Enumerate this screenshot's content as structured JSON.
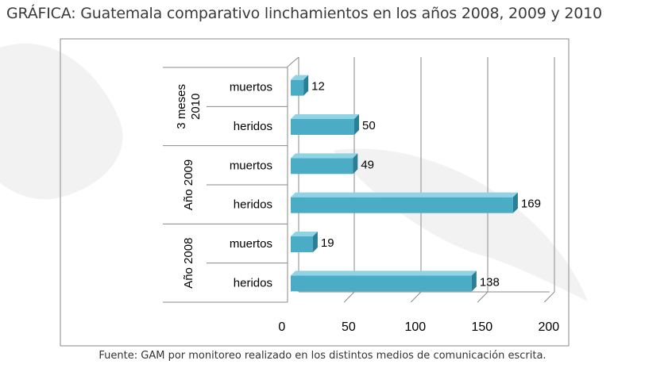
{
  "title": "GRÁFICA: Guatemala comparativo linchamientos en los años 2008, 2009 y 2010",
  "source": "Fuente: GAM por monitoreo realizado en los distintos medios de comunicación escrita.",
  "colors": {
    "bar_front": "#4bacc6",
    "bar_top": "#8fd3e4",
    "bar_side": "#2a7f96",
    "grid": "#8a8a8a",
    "map": "#ececec"
  },
  "chart_data": {
    "type": "bar",
    "orientation": "horizontal",
    "title": "GRÁFICA: Guatemala comparativo linchamientos en los años 2008, 2009 y 2010",
    "xlim": [
      0,
      200
    ],
    "xticks": [
      0,
      50,
      100,
      150,
      200
    ],
    "groups": [
      {
        "name": "3 meses 2010",
        "name_lines": [
          "3 meses",
          "2010"
        ],
        "items": [
          {
            "category": "muertos",
            "value": 12
          },
          {
            "category": "heridos",
            "value": 50
          }
        ]
      },
      {
        "name": "Año 2009",
        "name_lines": [
          "Año 2009"
        ],
        "items": [
          {
            "category": "muertos",
            "value": 49
          },
          {
            "category": "heridos",
            "value": 169
          }
        ]
      },
      {
        "name": "Año 2008",
        "name_lines": [
          "Año 2008"
        ],
        "items": [
          {
            "category": "muertos",
            "value": 19
          },
          {
            "category": "heridos",
            "value": 138
          }
        ]
      }
    ],
    "grid": true,
    "legend": "none"
  }
}
